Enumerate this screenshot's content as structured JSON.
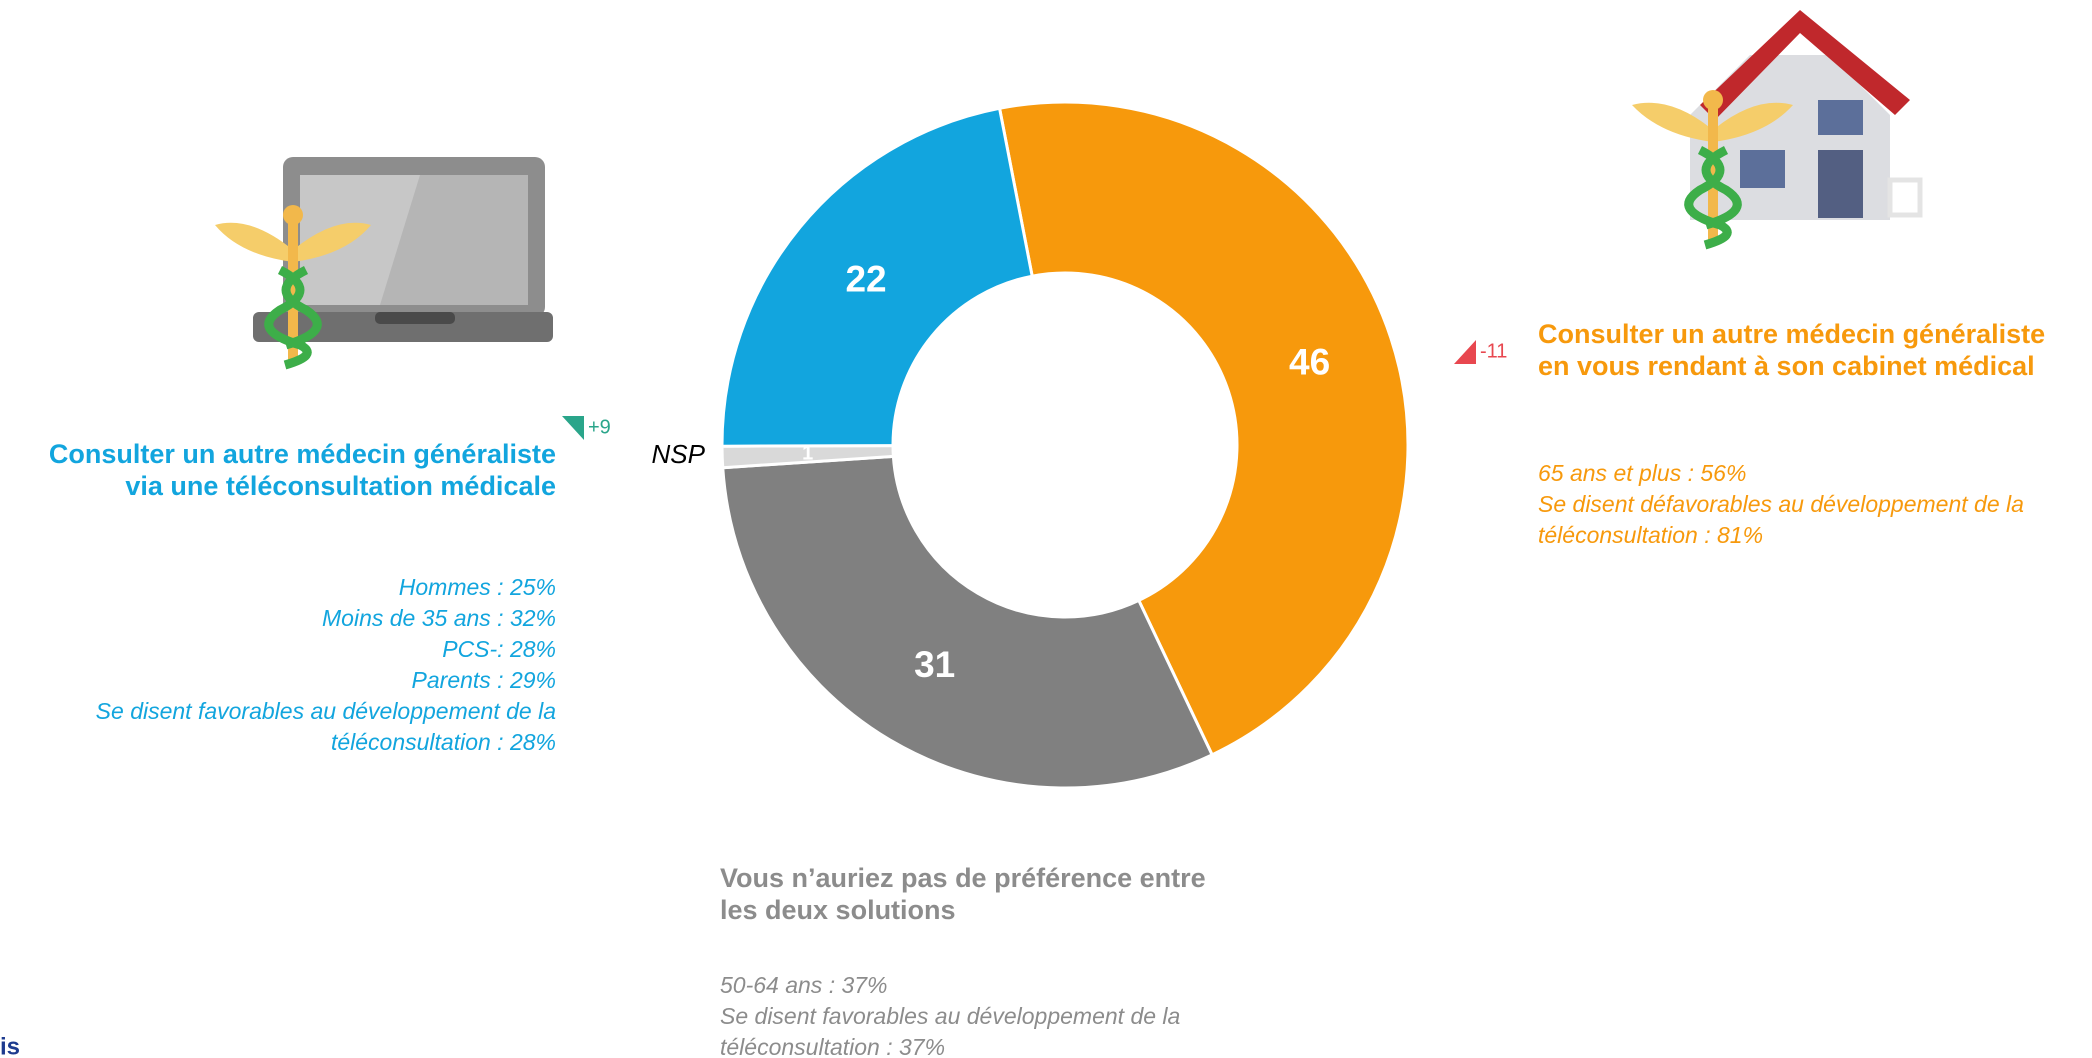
{
  "chart_data": {
    "type": "donut",
    "categories": [
      "Consulter un autre médecin généraliste en vous rendant à son cabinet médical",
      "Vous n’auriez pas de préférence entre les deux solutions",
      "NSP",
      "Consulter un autre médecin généraliste via une téléconsultation médicale"
    ],
    "values": [
      46,
      31,
      1,
      22
    ],
    "colors": [
      "#f7990c",
      "#808080",
      "#d9d9d9",
      "#12a5de"
    ],
    "text_colors": [
      "#f7990c",
      "#8c8c8c",
      "#000000",
      "#12a5de"
    ],
    "details": [
      [
        "65 ans et plus : 56%",
        "Se disent défavorables au développement de la téléconsultation : 81%"
      ],
      [
        "50-64 ans : 37%",
        "Se disent favorables au développement de la téléconsultation : 37%"
      ],
      [],
      [
        "Hommes : 25%",
        "Moins de 35 ans : 32%",
        "PCS-: 28%",
        "Parents : 29%",
        "Se disent favorables au développement de la téléconsultation : 28%"
      ]
    ],
    "changes": [
      {
        "label": "-11",
        "direction": "down",
        "color": "#e8474f"
      },
      null,
      null,
      {
        "label": "+9",
        "direction": "up",
        "color": "#2aa58a"
      }
    ],
    "logo": "is"
  }
}
